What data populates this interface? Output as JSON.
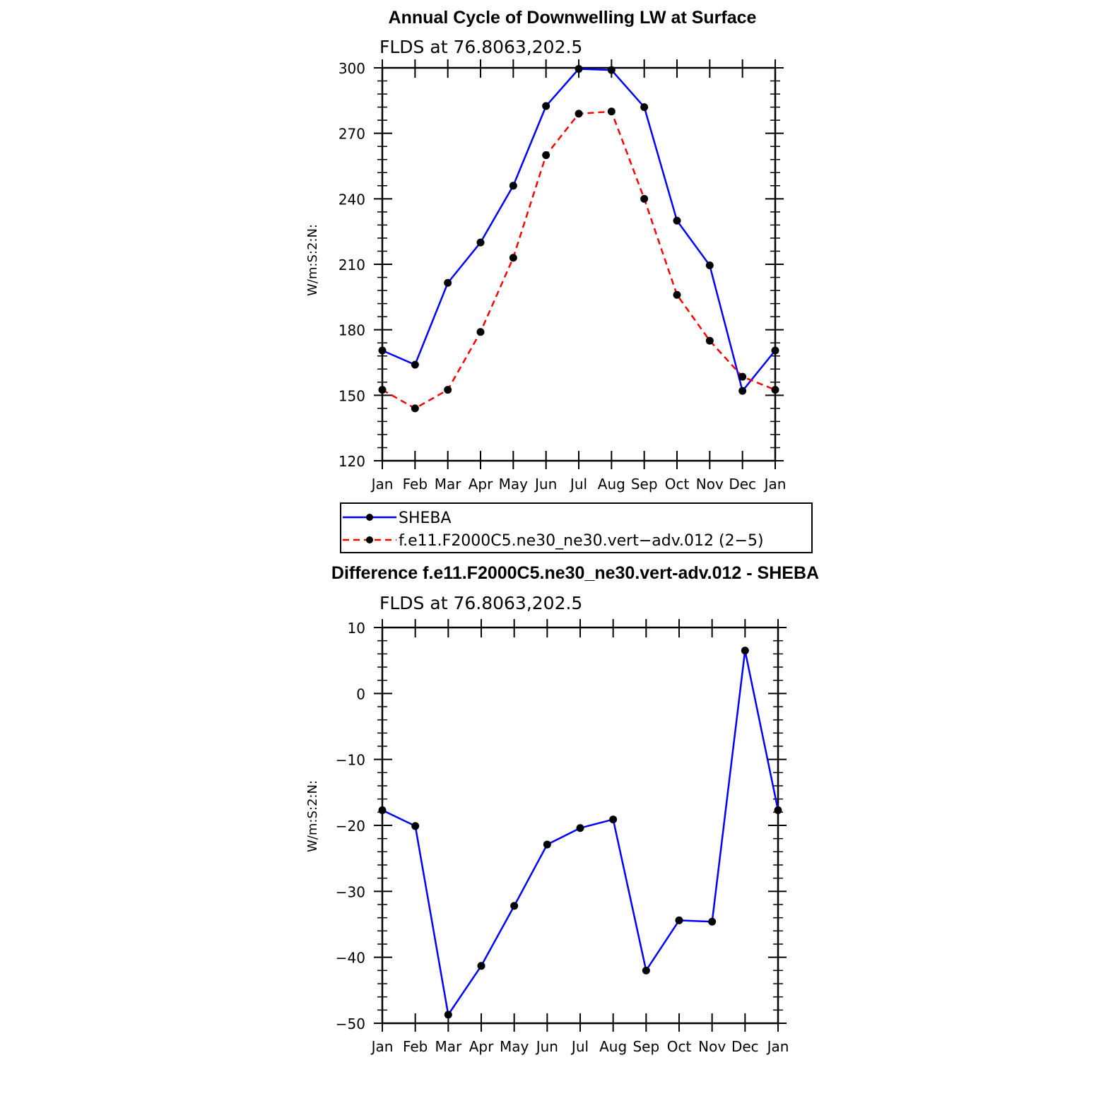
{
  "chart_data": [
    {
      "type": "line",
      "title": "Annual Cycle of Downwelling LW at Surface",
      "subtitle": "FLDS at 76.8063,202.5",
      "ylabel": "W/m:S:2:N:",
      "xlabel": "",
      "categories": [
        "Jan",
        "Feb",
        "Mar",
        "Apr",
        "May",
        "Jun",
        "Jul",
        "Aug",
        "Sep",
        "Oct",
        "Nov",
        "Dec",
        "Jan"
      ],
      "ylim": [
        120,
        300
      ],
      "yticks": [
        120,
        150,
        180,
        210,
        240,
        270,
        300
      ],
      "ytick_labels": [
        "120",
        "150",
        "180",
        "210",
        "240",
        "270",
        "300"
      ],
      "grid": false,
      "legend": "bottom",
      "series": [
        {
          "name": "SHEBA",
          "color": "#0000ff",
          "dash": "solid",
          "values": [
            170.5,
            164,
            201.5,
            220,
            246,
            282.5,
            299.5,
            299,
            282,
            230,
            209.5,
            152,
            170.5
          ]
        },
        {
          "name": "f.e11.F2000C5.ne30_ne30.vert−adv.012 (2−5)",
          "color": "#ff0000",
          "dash": "dashed",
          "values": [
            152.5,
            144,
            152.5,
            179,
            213,
            260,
            279,
            280,
            240,
            196,
            175,
            158.5,
            152.5
          ]
        }
      ]
    },
    {
      "type": "line",
      "title": "Difference f.e11.F2000C5.ne30_ne30.vert-adv.012 - SHEBA",
      "subtitle": "FLDS at 76.8063,202.5",
      "ylabel": "W/m:S:2:N:",
      "xlabel": "",
      "categories": [
        "Jan",
        "Feb",
        "Mar",
        "Apr",
        "May",
        "Jun",
        "Jul",
        "Aug",
        "Sep",
        "Oct",
        "Nov",
        "Dec",
        "Jan"
      ],
      "ylim": [
        -50,
        10
      ],
      "yticks": [
        -50,
        -40,
        -30,
        -20,
        -10,
        0,
        10
      ],
      "ytick_labels": [
        "−50",
        "−40",
        "−30",
        "−20",
        "−10",
        "0",
        "10"
      ],
      "grid": false,
      "series": [
        {
          "color": "#0000ff",
          "dash": "solid",
          "values": [
            -17.7,
            -20.1,
            -48.7,
            -41.3,
            -32.2,
            -22.9,
            -20.4,
            -19.1,
            -42.0,
            -34.4,
            -34.6,
            6.5,
            -17.7
          ]
        }
      ]
    }
  ]
}
